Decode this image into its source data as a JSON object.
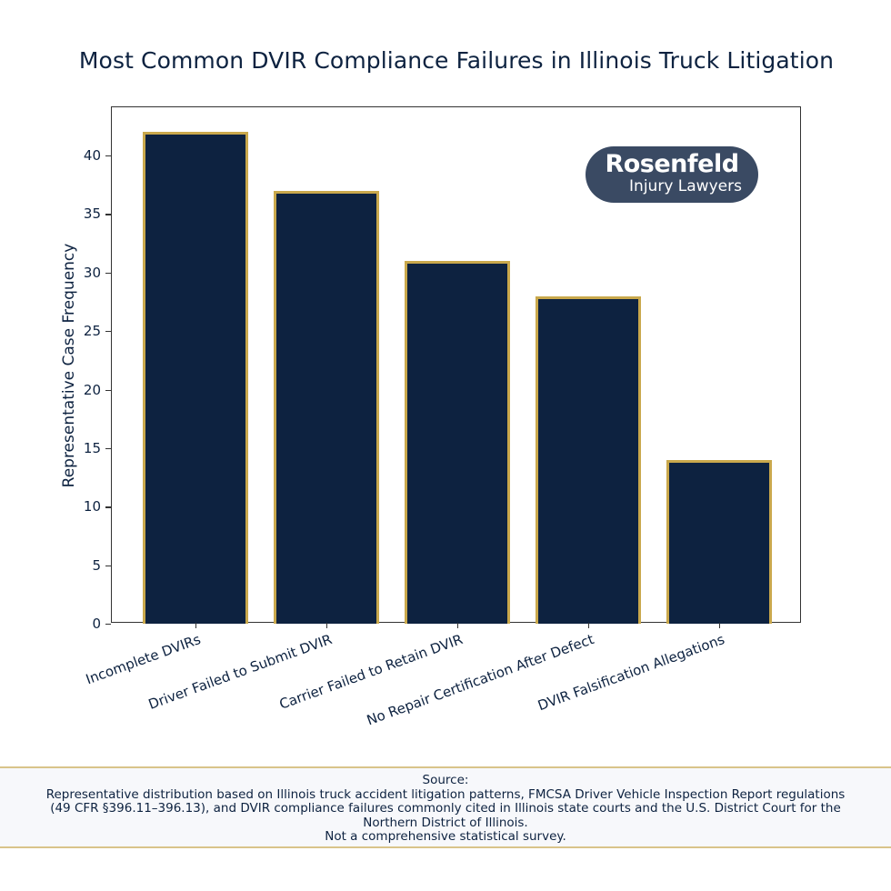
{
  "title": "Most Common DVIR Compliance Failures in Illinois Truck Litigation",
  "logo": {
    "line1": "Rosenfeld",
    "line2": "Injury Lawyers",
    "background": "#3a4a63"
  },
  "colors": {
    "bar_fill": "#0d2240",
    "bar_edge": "#c9a84c",
    "text": "#0d2240"
  },
  "yaxis": {
    "label": "Representative Case Frequency",
    "ticks": [
      "0",
      "5",
      "10",
      "15",
      "20",
      "25",
      "30",
      "35",
      "40"
    ]
  },
  "source": {
    "heading": "Source:",
    "line1": "Representative distribution based on Illinois truck accident litigation patterns, FMCSA Driver Vehicle Inspection Report regulations",
    "line2": "(49 CFR §396.11–396.13), and DVIR compliance failures commonly cited in Illinois state courts and the U.S. District Court for the",
    "line3": "Northern District of Illinois.",
    "line4": "Not a comprehensive statistical survey."
  },
  "chart_data": {
    "type": "bar",
    "title": "Most Common DVIR Compliance Failures in Illinois Truck Litigation",
    "categories": [
      "Incomplete DVIRs",
      "Driver Failed to Submit DVIR",
      "Carrier Failed to Retain DVIR",
      "No Repair Certification After Defect",
      "DVIR Falsification Allegations"
    ],
    "values": [
      42,
      37,
      31,
      28,
      14
    ],
    "xlabel": "",
    "ylabel": "Representative Case Frequency",
    "ylim": [
      0,
      44
    ],
    "yticks": [
      0,
      5,
      10,
      15,
      20,
      25,
      30,
      35,
      40
    ],
    "grid": false,
    "legend": null
  }
}
